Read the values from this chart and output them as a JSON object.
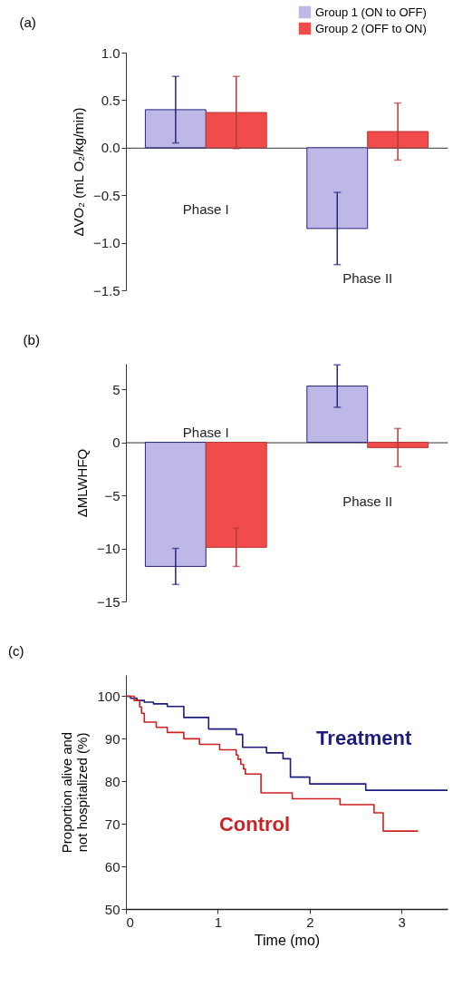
{
  "chart_data": [
    {
      "type": "bar",
      "title": "(a)",
      "categories": [
        "Phase I",
        "Phase II"
      ],
      "ylabel": "ΔVO₂ (mL O₂/kg/min)",
      "ylim": [
        -1.5,
        1.0
      ],
      "yticks": [
        -1.5,
        {
          "value": -1,
          "label": "−1.0"
        },
        -0.5,
        {
          "value": 0,
          "label": "0.0"
        },
        0.5,
        {
          "value": 1,
          "label": "1.0"
        }
      ],
      "legend": "top right",
      "tick_labels": "y",
      "series": [
        {
          "name": "Group 1 (ON to OFF)",
          "color": "#bdb8e6",
          "values": [
            0.4,
            -0.85
          ],
          "errors": [
            0.35,
            0.38
          ]
        },
        {
          "name": "Group 2 (OFF to ON)",
          "color": "#f24b4b",
          "values": [
            0.37,
            0.17
          ],
          "errors": [
            0.38,
            0.3
          ]
        }
      ]
    },
    {
      "type": "bar",
      "title": "(b)",
      "categories": [
        "Phase I",
        "Phase II"
      ],
      "ylabel": "ΔMLWHFQ",
      "ylim": [
        -15,
        7.4
      ],
      "yticks": [
        -15,
        -10,
        -5,
        0,
        5
      ],
      "legend": "top left",
      "tick_labels": "y",
      "series": [
        {
          "name": "Group 1 (ON to OFF)",
          "color": "#bdb8e6",
          "values": [
            -11.7,
            5.3
          ],
          "errors": [
            1.7,
            2.0
          ]
        },
        {
          "name": "Group 2 (OFF to ON)",
          "color": "#f24b4b",
          "values": [
            -9.9,
            -0.5
          ],
          "errors": [
            1.8,
            1.8
          ]
        }
      ]
    },
    {
      "type": "step",
      "title": "(c)",
      "xlabel": "Time (mo)",
      "ylabel": "Proportion alive and not hospitalized (%)",
      "xlim": [
        0,
        3.5
      ],
      "xticks": [
        0,
        1,
        2,
        3
      ],
      "ylim": [
        50,
        105
      ],
      "yticks": [
        50,
        60,
        70,
        80,
        90,
        100
      ],
      "series": [
        {
          "name": "Treatment",
          "color": "#1c1c80",
          "x": [
            0,
            0.05,
            0.12,
            0.2,
            0.3,
            0.45,
            0.63,
            0.9,
            1.2,
            1.27,
            1.53,
            1.71,
            1.79,
            2.0,
            2.61,
            3.5
          ],
          "values": [
            100,
            99.5,
            99,
            98.6,
            98.2,
            97.6,
            95,
            92.3,
            91,
            88,
            86.7,
            85.3,
            81,
            79.4,
            77.9,
            77.9
          ]
        },
        {
          "name": "Control",
          "color": "#cc2222",
          "x": [
            0,
            0.09,
            0.15,
            0.17,
            0.2,
            0.33,
            0.45,
            0.63,
            0.8,
            1.02,
            1.2,
            1.22,
            1.25,
            1.28,
            1.3,
            1.47,
            1.81,
            2.33,
            2.7,
            2.8,
            3.18
          ],
          "values": [
            100,
            99,
            97.5,
            96,
            93.9,
            92.7,
            91.5,
            90,
            88.7,
            87.4,
            86.2,
            85.2,
            84,
            82.9,
            81.7,
            77.3,
            75.9,
            74.5,
            72.6,
            68.3,
            68.3
          ]
        }
      ]
    }
  ]
}
